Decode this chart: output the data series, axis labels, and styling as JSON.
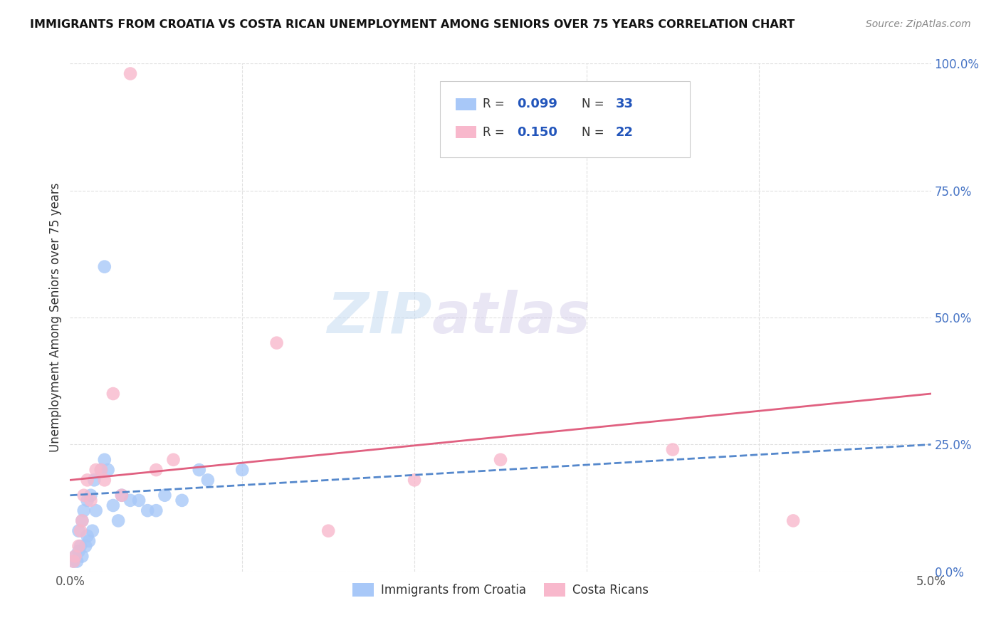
{
  "title": "IMMIGRANTS FROM CROATIA VS COSTA RICAN UNEMPLOYMENT AMONG SENIORS OVER 75 YEARS CORRELATION CHART",
  "source": "Source: ZipAtlas.com",
  "ylabel": "Unemployment Among Seniors over 75 years",
  "ylabel_right_ticks": [
    "100.0%",
    "75.0%",
    "50.0%",
    "25.0%",
    "0.0%"
  ],
  "ylabel_right_vals": [
    100,
    75,
    50,
    25,
    0
  ],
  "xmin": 0.0,
  "xmax": 5.0,
  "ymin": 0.0,
  "ymax": 100.0,
  "series1_label": "Immigrants from Croatia",
  "series1_R": "0.099",
  "series1_N": "33",
  "series1_color": "#a8c8f8",
  "series1_trendline_color": "#5588cc",
  "series2_label": "Costa Ricans",
  "series2_R": "0.150",
  "series2_N": "22",
  "series2_color": "#f8b8cc",
  "series2_trendline_color": "#e06080",
  "croatia_x": [
    0.02,
    0.03,
    0.04,
    0.05,
    0.05,
    0.06,
    0.07,
    0.07,
    0.08,
    0.09,
    0.1,
    0.1,
    0.11,
    0.12,
    0.13,
    0.14,
    0.15,
    0.18,
    0.2,
    0.22,
    0.25,
    0.28,
    0.3,
    0.35,
    0.4,
    0.45,
    0.5,
    0.55,
    0.65,
    0.75,
    0.8,
    1.0,
    0.2
  ],
  "croatia_y": [
    2,
    3,
    2,
    4,
    8,
    5,
    3,
    10,
    12,
    5,
    7,
    14,
    6,
    15,
    8,
    18,
    12,
    20,
    22,
    20,
    13,
    10,
    15,
    14,
    14,
    12,
    12,
    15,
    14,
    20,
    18,
    20,
    60
  ],
  "costarica_x": [
    0.02,
    0.03,
    0.05,
    0.06,
    0.07,
    0.08,
    0.1,
    0.12,
    0.15,
    0.18,
    0.2,
    0.25,
    0.3,
    0.5,
    0.6,
    1.2,
    1.5,
    2.0,
    2.5,
    3.5,
    4.2,
    0.35
  ],
  "costarica_y": [
    2,
    3,
    5,
    8,
    10,
    15,
    18,
    14,
    20,
    20,
    18,
    35,
    15,
    20,
    22,
    45,
    8,
    18,
    22,
    24,
    10,
    98
  ],
  "watermark_zip": "ZIP",
  "watermark_atlas": "atlas",
  "background_color": "#ffffff",
  "grid_color": "#e0e0e0",
  "legend_R_color": "#2255bb",
  "legend_N_color": "#2255bb"
}
